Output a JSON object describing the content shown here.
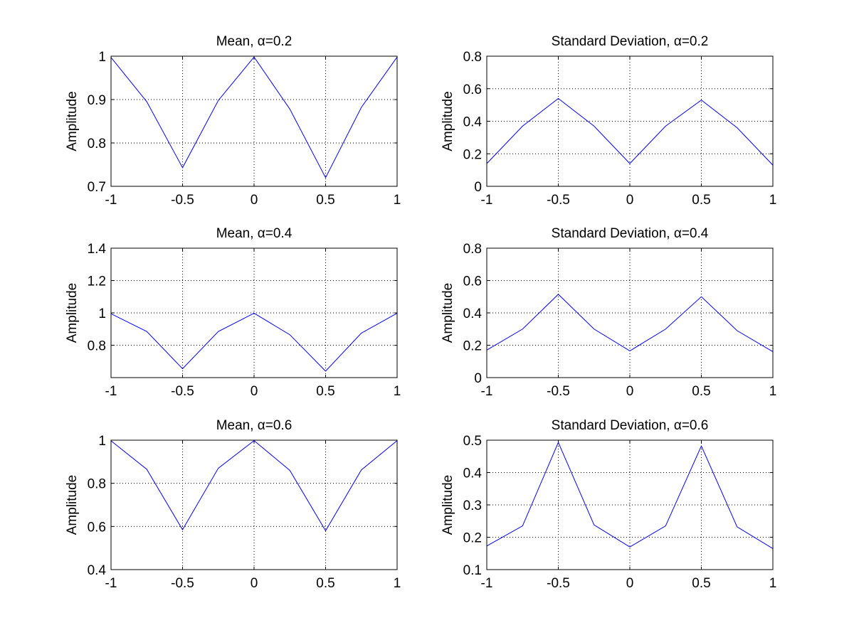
{
  "colors": {
    "series": "#0000ff",
    "axes": "#000000",
    "background": "#ffffff"
  },
  "chart_data": [
    {
      "type": "line",
      "title": "Mean, α=0.2",
      "ylabel": "Amplitude",
      "xlabel": "",
      "xlim": [
        -1,
        1
      ],
      "ylim": [
        0.7,
        1
      ],
      "xticks": [
        -1,
        -0.5,
        0,
        0.5,
        1
      ],
      "xtick_labels": [
        "-1",
        "-0.5",
        "0",
        "0.5",
        "1"
      ],
      "yticks": [
        0.7,
        0.8,
        0.9,
        1
      ],
      "ytick_labels": [
        "0.7",
        "0.8",
        "0.9",
        "1"
      ],
      "grid": true,
      "x": [
        -1,
        -0.75,
        -0.5,
        -0.25,
        0,
        0.25,
        0.5,
        0.75,
        1
      ],
      "y": [
        0.997,
        0.895,
        0.743,
        0.898,
        0.998,
        0.878,
        0.72,
        0.882,
        0.998
      ]
    },
    {
      "type": "line",
      "title": "Standard Deviation, α=0.2",
      "ylabel": "Amplitude",
      "xlabel": "",
      "xlim": [
        -1,
        1
      ],
      "ylim": [
        0,
        0.8
      ],
      "xticks": [
        -1,
        -0.5,
        0,
        0.5,
        1
      ],
      "xtick_labels": [
        "-1",
        "-0.5",
        "0",
        "0.5",
        "1"
      ],
      "yticks": [
        0,
        0.2,
        0.4,
        0.6,
        0.8
      ],
      "ytick_labels": [
        "0",
        "0.2",
        "0.4",
        "0.6",
        "0.8"
      ],
      "grid": true,
      "x": [
        -1,
        -0.75,
        -0.5,
        -0.25,
        0,
        0.25,
        0.5,
        0.75,
        1
      ],
      "y": [
        0.14,
        0.37,
        0.54,
        0.37,
        0.14,
        0.37,
        0.53,
        0.36,
        0.13
      ]
    },
    {
      "type": "line",
      "title": "Mean, α=0.4",
      "ylabel": "Amplitude",
      "xlabel": "",
      "xlim": [
        -1,
        1
      ],
      "ylim": [
        0.6,
        1.4
      ],
      "xticks": [
        -1,
        -0.5,
        0,
        0.5,
        1
      ],
      "xtick_labels": [
        "-1",
        "-0.5",
        "0",
        "0.5",
        "1"
      ],
      "yticks": [
        0.8,
        1,
        1.2,
        1.4
      ],
      "ytick_labels": [
        "0.8",
        "1",
        "1.2",
        "1.4"
      ],
      "grid": true,
      "x": [
        -1,
        -0.75,
        -0.5,
        -0.25,
        0,
        0.25,
        0.5,
        0.75,
        1
      ],
      "y": [
        0.995,
        0.885,
        0.655,
        0.885,
        0.998,
        0.865,
        0.64,
        0.875,
        0.998
      ]
    },
    {
      "type": "line",
      "title": "Standard Deviation, α=0.4",
      "ylabel": "Amplitude",
      "xlabel": "",
      "xlim": [
        -1,
        1
      ],
      "ylim": [
        0,
        0.8
      ],
      "xticks": [
        -1,
        -0.5,
        0,
        0.5,
        1
      ],
      "xtick_labels": [
        "-1",
        "-0.5",
        "0",
        "0.5",
        "1"
      ],
      "yticks": [
        0,
        0.2,
        0.4,
        0.6,
        0.8
      ],
      "ytick_labels": [
        "0",
        "0.2",
        "0.4",
        "0.6",
        "0.8"
      ],
      "grid": true,
      "x": [
        -1,
        -0.75,
        -0.5,
        -0.25,
        0,
        0.25,
        0.5,
        0.75,
        1
      ],
      "y": [
        0.17,
        0.3,
        0.515,
        0.3,
        0.165,
        0.3,
        0.5,
        0.29,
        0.16
      ]
    },
    {
      "type": "line",
      "title": "Mean, α=0.6",
      "ylabel": "Amplitude",
      "xlabel": "",
      "xlim": [
        -1,
        1
      ],
      "ylim": [
        0.4,
        1
      ],
      "xticks": [
        -1,
        -0.5,
        0,
        0.5,
        1
      ],
      "xtick_labels": [
        "-1",
        "-0.5",
        "0",
        "0.5",
        "1"
      ],
      "yticks": [
        0.4,
        0.6,
        0.8,
        1
      ],
      "ytick_labels": [
        "0.4",
        "0.6",
        "0.8",
        "1"
      ],
      "grid": true,
      "x": [
        -1,
        -0.75,
        -0.5,
        -0.25,
        0,
        0.25,
        0.5,
        0.75,
        1
      ],
      "y": [
        0.997,
        0.865,
        0.585,
        0.87,
        0.998,
        0.86,
        0.58,
        0.862,
        0.998
      ]
    },
    {
      "type": "line",
      "title": "Standard Deviation, α=0.6",
      "ylabel": "Amplitude",
      "xlabel": "",
      "xlim": [
        -1,
        1
      ],
      "ylim": [
        0.1,
        0.5
      ],
      "xticks": [
        -1,
        -0.5,
        0,
        0.5,
        1
      ],
      "xtick_labels": [
        "-1",
        "-0.5",
        "0",
        "0.5",
        "1"
      ],
      "yticks": [
        0.1,
        0.2,
        0.3,
        0.4,
        0.5
      ],
      "ytick_labels": [
        "0.1",
        "0.2",
        "0.3",
        "0.4",
        "0.5"
      ],
      "grid": true,
      "x": [
        -1,
        -0.75,
        -0.5,
        -0.25,
        0,
        0.25,
        0.5,
        0.75,
        1
      ],
      "y": [
        0.173,
        0.235,
        0.493,
        0.238,
        0.17,
        0.235,
        0.482,
        0.232,
        0.165
      ]
    }
  ]
}
